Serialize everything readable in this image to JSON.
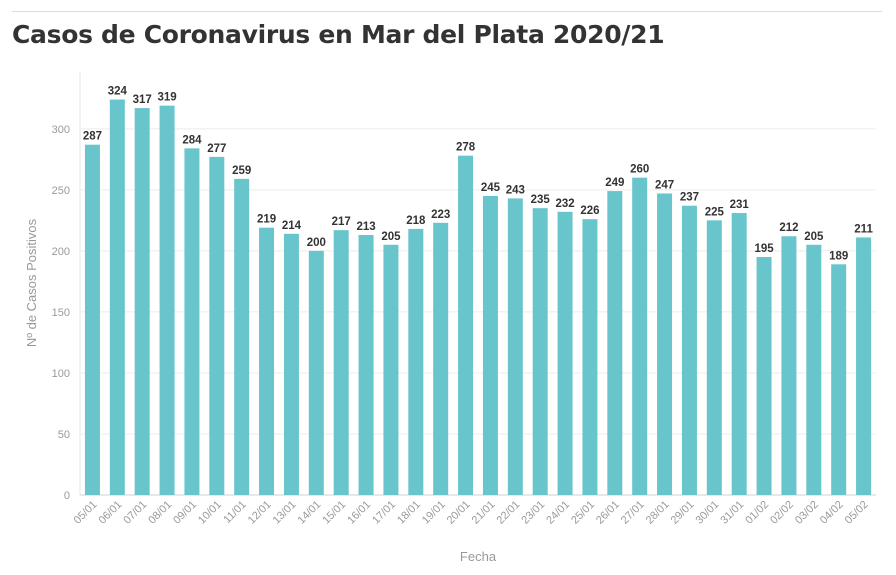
{
  "header": {
    "title": "Casos de Coronavirus en Mar del Plata 2020/21"
  },
  "chart_data": {
    "type": "bar",
    "title": "Casos de Coronavirus en Mar del Plata 2020/21",
    "xlabel": "Fecha",
    "ylabel": "Nº de Casos Positivos",
    "ylim": [
      0,
      340
    ],
    "yticks": [
      0,
      50,
      100,
      150,
      200,
      250,
      300
    ],
    "grid": true,
    "bar_color": "#69c5cc",
    "categories": [
      "05/01",
      "06/01",
      "07/01",
      "08/01",
      "09/01",
      "10/01",
      "11/01",
      "12/01",
      "13/01",
      "14/01",
      "15/01",
      "16/01",
      "17/01",
      "18/01",
      "19/01",
      "20/01",
      "21/01",
      "22/01",
      "23/01",
      "24/01",
      "25/01",
      "26/01",
      "27/01",
      "28/01",
      "29/01",
      "30/01",
      "31/01",
      "01/02",
      "02/02",
      "03/02",
      "04/02",
      "05/02"
    ],
    "values": [
      287,
      324,
      317,
      319,
      284,
      277,
      259,
      219,
      214,
      200,
      217,
      213,
      205,
      218,
      223,
      278,
      245,
      243,
      235,
      232,
      226,
      249,
      260,
      247,
      237,
      225,
      231,
      195,
      212,
      205,
      189,
      211
    ]
  }
}
